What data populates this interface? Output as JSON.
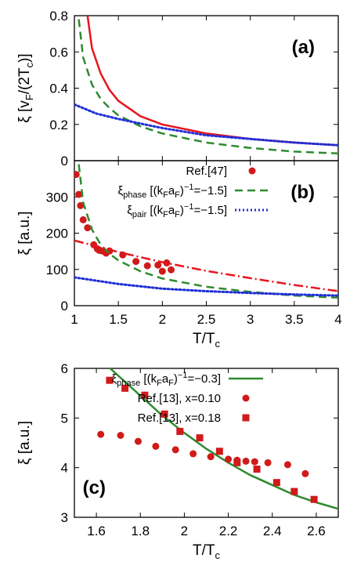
{
  "chart_data": [
    {
      "type": "line",
      "panel_label": "(a)",
      "xlim": [
        1,
        4
      ],
      "ylim": [
        0,
        0.8
      ],
      "xticks": [
        1,
        1.5,
        2,
        2.5,
        3,
        3.5,
        4
      ],
      "yticks": [
        0,
        0.2,
        0.4,
        0.6,
        0.8
      ],
      "ytick_labels": [
        "0",
        "0.2",
        "0.4",
        "0.6",
        "0.8"
      ],
      "ylabel": "ξ [vF/(2Tc)]",
      "grid": false,
      "legend": "none",
      "series": [
        {
          "color": "#e8141c",
          "style": "solid",
          "x": [
            1.15,
            1.2,
            1.3,
            1.4,
            1.5,
            1.75,
            2.0,
            2.5,
            3.0,
            3.5,
            4.0
          ],
          "y": [
            0.8,
            0.62,
            0.48,
            0.39,
            0.33,
            0.245,
            0.2,
            0.15,
            0.12,
            0.1,
            0.085
          ]
        },
        {
          "color": "#2e8b2e",
          "style": "dashed",
          "x": [
            1.05,
            1.1,
            1.2,
            1.3,
            1.4,
            1.5,
            1.75,
            2.0,
            2.5,
            3.0,
            3.5,
            4.0
          ],
          "y": [
            0.78,
            0.57,
            0.42,
            0.34,
            0.29,
            0.25,
            0.19,
            0.15,
            0.1,
            0.07,
            0.05,
            0.04
          ]
        },
        {
          "color": "#1f2fd6",
          "style": "dotted",
          "x": [
            1.0,
            1.25,
            1.5,
            2.0,
            2.5,
            3.0,
            3.5,
            4.0
          ],
          "y": [
            0.31,
            0.26,
            0.23,
            0.18,
            0.14,
            0.12,
            0.1,
            0.085
          ]
        }
      ]
    },
    {
      "type": "line",
      "panel_label": "(b)",
      "xlim": [
        1,
        4
      ],
      "ylim": [
        0,
        400
      ],
      "xticks": [
        1,
        1.5,
        2,
        2.5,
        3,
        3.5,
        4
      ],
      "xtick_labels": [
        "1",
        "1.5",
        "2",
        "2.5",
        "3",
        "3.5",
        "4"
      ],
      "yticks": [
        0,
        100,
        200,
        300
      ],
      "ytick_labels": [
        "0",
        "100",
        "200",
        "300"
      ],
      "xlabel": "T/Tc",
      "ylabel": "ξ [a.u.]",
      "grid": false,
      "legend": "top-right",
      "legend_entries": [
        {
          "label": "Ref.[47]",
          "symbol": "circle",
          "color": "#d11a1a"
        },
        {
          "label": "ξphase [(kFaF)−1=−1.5]",
          "symbol": "dashed",
          "color": "#2e8b2e"
        },
        {
          "label": "ξpair [(kFaF)−1=−1.5]",
          "symbol": "dotted",
          "color": "#1f2fd6"
        }
      ],
      "series": [
        {
          "name": "Ref.[47]",
          "type": "scatter",
          "color": "#d11a1a",
          "x": [
            1.02,
            1.05,
            1.07,
            1.1,
            1.15,
            1.22,
            1.26,
            1.28,
            1.3,
            1.33,
            1.36,
            1.4,
            1.55,
            1.7,
            1.83,
            1.95,
            2.0,
            2.05,
            2.1
          ],
          "y": [
            362,
            307,
            276,
            237,
            215,
            168,
            157,
            153,
            152,
            150,
            145,
            151,
            140,
            122,
            110,
            112,
            95,
            118,
            99
          ]
        },
        {
          "name": "ξphase [(kFaF)−1=−1.5]",
          "color": "#2e8b2e",
          "style": "dashed",
          "x": [
            1.05,
            1.1,
            1.2,
            1.3,
            1.4,
            1.5,
            1.75,
            2.0,
            2.5,
            3.0,
            3.5,
            4.0
          ],
          "y": [
            390,
            285,
            210,
            168,
            143,
            125,
            95,
            75,
            52,
            38,
            28,
            22
          ]
        },
        {
          "name": "ξpair [(kFaF)−1=−1.5]",
          "color": "#1f2fd6",
          "style": "dotted",
          "x": [
            1.0,
            1.5,
            2.0,
            2.5,
            3.0,
            3.5,
            4.0
          ],
          "y": [
            78,
            60,
            47,
            40,
            35,
            31,
            28
          ]
        },
        {
          "color": "#e8141c",
          "style": "dashdot",
          "x": [
            1.0,
            1.5,
            2.0,
            2.5,
            3.0,
            3.5,
            4.0
          ],
          "y": [
            180,
            148,
            120,
            96,
            76,
            57,
            40
          ]
        }
      ]
    },
    {
      "type": "line",
      "panel_label": "(c)",
      "xlim": [
        1.5,
        2.7
      ],
      "ylim": [
        3,
        6
      ],
      "xticks": [
        1.6,
        1.8,
        2.0,
        2.2,
        2.4,
        2.6
      ],
      "xtick_labels": [
        "1.6",
        "1.8",
        "2",
        "2.2",
        "2.4",
        "2.6"
      ],
      "yticks": [
        3,
        4,
        5,
        6
      ],
      "ytick_labels": [
        "3",
        "4",
        "5",
        "6"
      ],
      "xlabel": "T/Tc",
      "ylabel": "ξ [a.u.]",
      "grid": false,
      "legend": "top-right",
      "legend_entries": [
        {
          "label": "ξphase [(kFaF)−1=−0.3]",
          "symbol": "solid",
          "color": "#2e8b2e"
        },
        {
          "label": "Ref.[13], x=0.10",
          "symbol": "circle",
          "color": "#d11a1a"
        },
        {
          "label": "Ref.[13], x=0.18",
          "symbol": "square",
          "color": "#d11a1a"
        }
      ],
      "series": [
        {
          "name": "ξphase [(kFaF)−1=−0.3]",
          "color": "#2e8b2e",
          "style": "solid",
          "x": [
            1.6,
            1.7,
            1.8,
            1.9,
            2.0,
            2.1,
            2.2,
            2.3,
            2.4,
            2.5,
            2.6,
            2.7
          ],
          "y": [
            6.25,
            5.85,
            5.45,
            5.05,
            4.7,
            4.38,
            4.1,
            3.85,
            3.65,
            3.45,
            3.3,
            3.17
          ]
        },
        {
          "name": "Ref.[13], x=0.10",
          "type": "scatter",
          "color": "#d11a1a",
          "x": [
            1.62,
            1.71,
            1.79,
            1.87,
            1.96,
            2.04,
            2.12,
            2.2,
            2.24,
            2.28,
            2.32,
            2.38,
            2.47,
            2.55
          ],
          "y": [
            4.67,
            4.65,
            4.53,
            4.43,
            4.36,
            4.28,
            4.22,
            4.17,
            4.15,
            4.13,
            4.12,
            4.1,
            4.06,
            3.88
          ]
        },
        {
          "name": "Ref.[13], x=0.18",
          "type": "scatter",
          "color": "#d11a1a",
          "x": [
            1.66,
            1.73,
            1.82,
            1.91,
            1.98,
            2.07,
            2.16,
            2.24,
            2.33,
            2.42,
            2.5,
            2.59
          ],
          "y": [
            5.76,
            5.6,
            5.46,
            5.08,
            4.73,
            4.6,
            4.33,
            4.1,
            3.97,
            3.7,
            3.52,
            3.36
          ]
        }
      ]
    }
  ]
}
